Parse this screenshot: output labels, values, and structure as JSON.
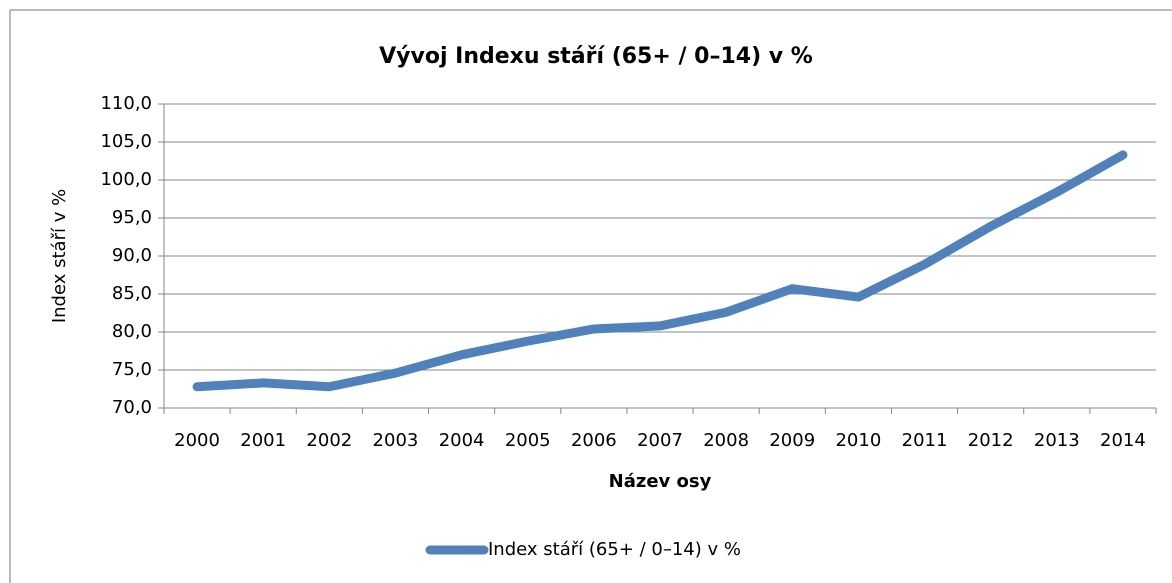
{
  "chart_data": {
    "type": "line",
    "title": "Vývoj Indexu stáří (65+ / 0–14) v %",
    "x_label": "Název osy",
    "y_label": "Index stáří v %",
    "categories": [
      "2000",
      "2001",
      "2002",
      "2003",
      "2004",
      "2005",
      "2006",
      "2007",
      "2008",
      "2009",
      "2010",
      "2011",
      "2012",
      "2013",
      "2014"
    ],
    "series": [
      {
        "name": "Index stáří (65+ / 0–14) v %",
        "color": "#4f81bd",
        "values": [
          72.8,
          73.3,
          72.8,
          74.6,
          77.0,
          78.8,
          80.4,
          80.8,
          82.6,
          85.7,
          84.6,
          88.9,
          93.9,
          98.4,
          103.3
        ]
      }
    ],
    "ylim": [
      70,
      110
    ],
    "yticks": [
      {
        "value": 70,
        "label": "70,0"
      },
      {
        "value": 75,
        "label": "75,0"
      },
      {
        "value": 80,
        "label": "80,0"
      },
      {
        "value": 85,
        "label": "85,0"
      },
      {
        "value": 90,
        "label": "90,0"
      },
      {
        "value": 95,
        "label": "95,0"
      },
      {
        "value": 100,
        "label": "100,0"
      },
      {
        "value": 105,
        "label": "105,0"
      },
      {
        "value": 110,
        "label": "110,0"
      }
    ],
    "grid": true,
    "legend": "bottom"
  }
}
